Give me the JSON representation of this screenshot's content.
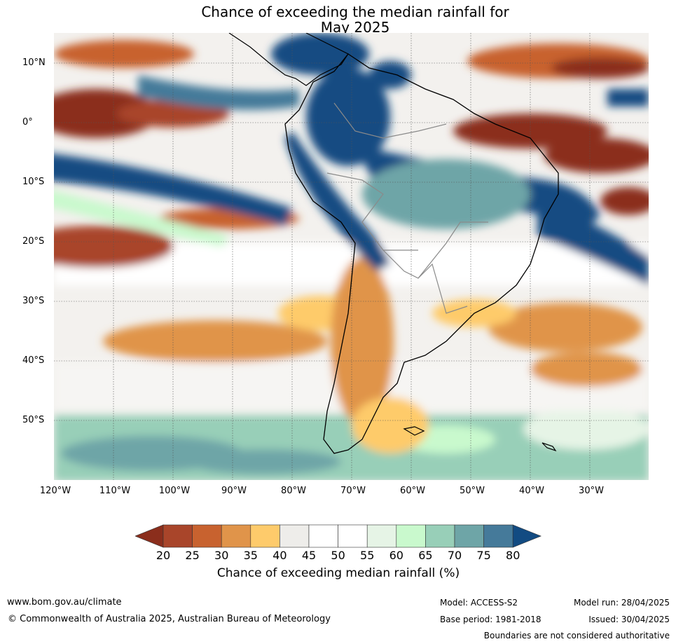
{
  "title": {
    "line1": "Chance of exceeding the median rainfall for",
    "line2": "May 2025"
  },
  "map": {
    "lat_labels": [
      "10°N",
      "0°",
      "10°S",
      "20°S",
      "30°S",
      "40°S",
      "50°S"
    ],
    "lon_labels": [
      "120°W",
      "110°W",
      "100°W",
      "90°W",
      "80°W",
      "70°W",
      "60°W",
      "50°W",
      "40°W",
      "30°W"
    ]
  },
  "legend": {
    "title": "Chance of exceeding median rainfall (%)",
    "ticks": [
      "20",
      "25",
      "30",
      "35",
      "40",
      "45",
      "50",
      "55",
      "60",
      "65",
      "70",
      "75",
      "80"
    ],
    "colors": [
      "#8b2e1c",
      "#a9452a",
      "#c8622f",
      "#e0944a",
      "#fecb6b",
      "#eeedea",
      "#ffffff",
      "#ffffff",
      "#e6f4e6",
      "#c9f9cd",
      "#98cfb8",
      "#6ea5a7",
      "#457a9a",
      "#124b82"
    ]
  },
  "footer": {
    "website": "www.bom.gov.au/climate",
    "copyright": "© Commonwealth of Australia 2025, Australian Bureau of Meteorology",
    "model": "Model: ACCESS-S2",
    "model_run": "Model run: 28/04/2025",
    "base_period": "Base period: 1981-2018",
    "issued": "Issued: 30/04/2025",
    "disclaimer": "Boundaries are not considered authoritative"
  }
}
